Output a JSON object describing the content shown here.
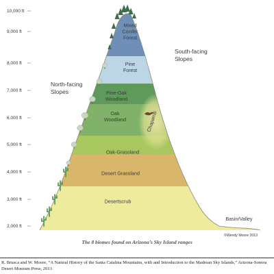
{
  "elevation_labels": [
    "10,000 ft",
    "9,000 ft",
    "8,000 ft",
    "7,000 ft",
    "6,000 ft",
    "5,000 ft",
    "4,000 ft",
    "3,000 ft",
    "2,000 ft"
  ],
  "zones": [
    {
      "label_lines": [
        "Mixed",
        "Conifer",
        "Forest"
      ],
      "color": "#6f8fb8"
    },
    {
      "label_lines": [
        "Pine",
        "Forest"
      ],
      "color": "#bcd6e6"
    },
    {
      "label_lines": [
        "Pine-Oak",
        "Woodland"
      ],
      "color": "#5f9a5c"
    },
    {
      "label_lines": [
        "Oak",
        "Woodland"
      ],
      "color": "#80b269"
    },
    {
      "label_lines": [
        "Oak-Grassland"
      ],
      "color": "#a8c85f"
    },
    {
      "label_lines": [
        "Desert Grassland"
      ],
      "color": "#d8b66a"
    },
    {
      "label_lines": [
        "Desertscrub"
      ],
      "color": "#eeeb9c"
    }
  ],
  "chaparral_label": "Chaparral",
  "slope_labels": {
    "north": [
      "North-facing",
      "Slopes"
    ],
    "south": [
      "South-facing",
      "Slopes"
    ],
    "basin": "Basin/Valley"
  },
  "credit": "©Wendy Moore 2013",
  "caption": "The 8 biomes found on Arizona’s Sky Island ranges",
  "source": "R. Brusca and W. Moore, “A Natural History of the Santa Catalina Mountains, with and Introduction to the Madrean Sky Islands,” Arizona-Sonora Desert Museum Press, 2013"
}
